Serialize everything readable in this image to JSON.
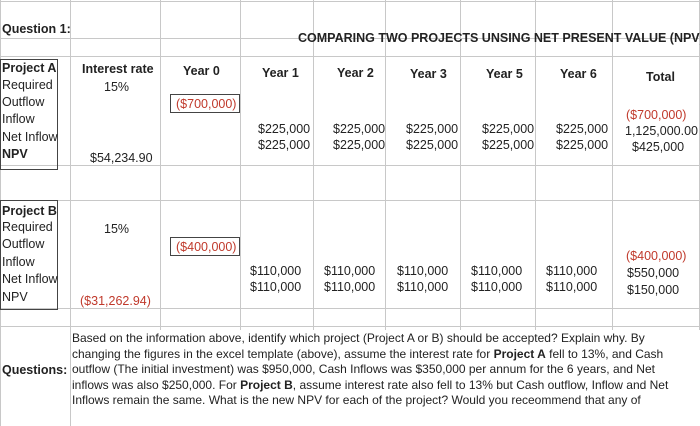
{
  "question_label": "Question 1:",
  "title": "COMPARING TWO PROJECTS UNSING NET PRESENT VALUE (NPV)",
  "headers": {
    "interest_rate": "Interest rate",
    "year0": "Year 0",
    "year1": "Year 1",
    "year2": "Year 2",
    "year3": "Year 3",
    "year5": "Year 5",
    "year6": "Year 6",
    "total": "Total"
  },
  "project_a": {
    "name": "Project A",
    "rows": [
      "Required",
      "Outflow",
      "Inflow",
      "Net Inflow",
      "NPV"
    ],
    "rate": "15%",
    "outflow_y0": "($700,000)",
    "outflow_total": "($700,000)",
    "inflow": [
      "$225,000",
      "$225,000",
      "$225,000",
      "$225,000",
      "$225,000"
    ],
    "inflow_total": "1,125,000.00",
    "net_inflow": [
      "$225,000",
      "$225,000",
      "$225,000",
      "$225,000",
      "$225,000"
    ],
    "net_total": "$425,000",
    "npv": "$54,234.90"
  },
  "project_b": {
    "name": "Project B",
    "rows": [
      "Required",
      "Outflow",
      "Inflow",
      "Net Inflow",
      "NPV"
    ],
    "rate": "15%",
    "outflow_y0": "($400,000)",
    "outflow_total": "($400,000)",
    "inflow": [
      "$110,000",
      "$110,000",
      "$110,000",
      "$110,000",
      "$110,000"
    ],
    "inflow_total": "$550,000",
    "net_inflow": [
      "$110,000",
      "$110,000",
      "$110,000",
      "$110,000",
      "$110,000"
    ],
    "net_total": "$150,000",
    "npv": "($31,262.94)"
  },
  "questions_label": "Questions:",
  "questions_text_plain_1": "Based on the information above, identify which project (Project A or B) should be accepted? Explain why. By changing the figures in the excel template (above), assume the interest rate for ",
  "questions_bold_a": "Project A",
  "questions_text_plain_2": " fell to 13%, and Cash outflow (The initial investment) was $950,000, Cash Inflows was $350,000 per annum for the 6 years, and Net inflows was also $250,000. For ",
  "questions_bold_b": "Project B",
  "questions_text_plain_3": ", assume interest rate also fell to 13% but Cash outflow, Inflow and Net Inflows remain the same. What is the new NPV for each of the project? Would you receommend that any of"
}
